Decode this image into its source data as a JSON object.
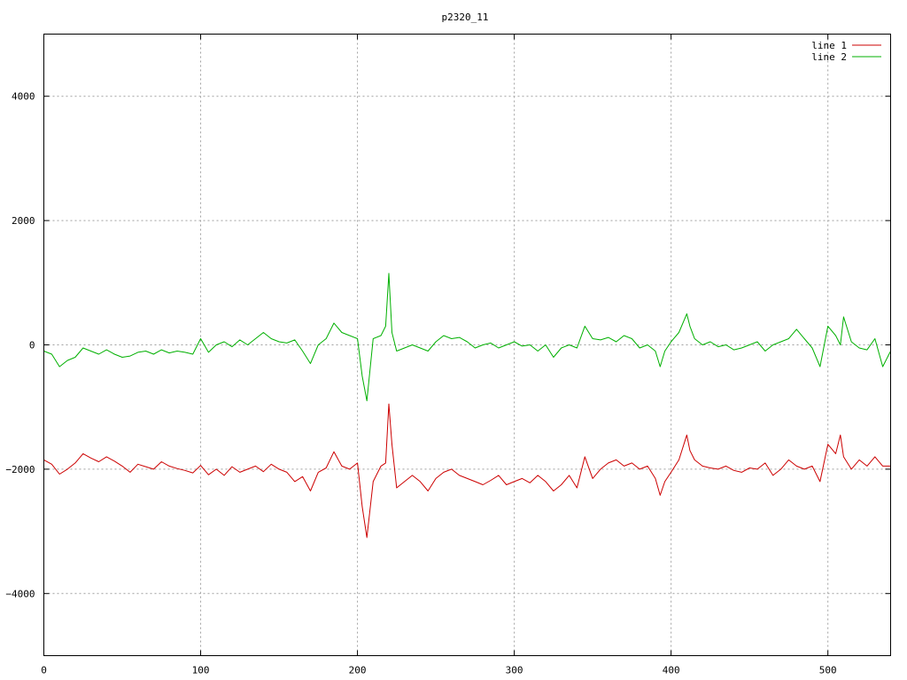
{
  "chart_data": {
    "type": "line",
    "title": "p2320_11",
    "xlabel": "",
    "ylabel": "",
    "xlim": [
      0,
      540
    ],
    "ylim": [
      -5000,
      5000
    ],
    "x_ticks": [
      0,
      100,
      200,
      300,
      400,
      500
    ],
    "y_ticks": [
      -4000,
      -2000,
      0,
      2000,
      4000
    ],
    "grid": true,
    "legend_position": "top-right",
    "colors": {
      "line 1": "#cc0000",
      "line 2": "#00b000"
    },
    "series": [
      {
        "name": "line 1",
        "x": [
          0,
          5,
          10,
          15,
          20,
          25,
          30,
          35,
          40,
          45,
          50,
          55,
          60,
          65,
          70,
          75,
          80,
          85,
          90,
          95,
          100,
          105,
          110,
          115,
          120,
          125,
          130,
          135,
          140,
          145,
          150,
          155,
          160,
          165,
          170,
          175,
          180,
          185,
          190,
          195,
          200,
          203,
          206,
          210,
          215,
          218,
          220,
          222,
          225,
          230,
          235,
          240,
          245,
          250,
          255,
          260,
          265,
          270,
          275,
          280,
          285,
          290,
          295,
          300,
          305,
          310,
          315,
          320,
          325,
          330,
          335,
          340,
          345,
          350,
          355,
          360,
          365,
          370,
          375,
          380,
          385,
          390,
          393,
          396,
          400,
          405,
          410,
          412,
          415,
          420,
          425,
          430,
          435,
          440,
          445,
          450,
          455,
          460,
          465,
          470,
          475,
          480,
          485,
          490,
          495,
          500,
          505,
          508,
          510,
          515,
          520,
          525,
          530,
          535,
          540
        ],
        "values": [
          -1850,
          -1920,
          -2080,
          -2000,
          -1900,
          -1750,
          -1820,
          -1880,
          -1800,
          -1870,
          -1950,
          -2050,
          -1920,
          -1960,
          -2000,
          -1880,
          -1950,
          -1990,
          -2020,
          -2060,
          -1940,
          -2090,
          -2000,
          -2100,
          -1960,
          -2050,
          -2000,
          -1950,
          -2040,
          -1920,
          -2000,
          -2050,
          -2200,
          -2120,
          -2350,
          -2050,
          -1980,
          -1720,
          -1950,
          -2000,
          -1900,
          -2600,
          -3100,
          -2200,
          -1950,
          -1900,
          -950,
          -1600,
          -2300,
          -2200,
          -2100,
          -2200,
          -2350,
          -2150,
          -2050,
          -2000,
          -2100,
          -2150,
          -2200,
          -2250,
          -2180,
          -2100,
          -2250,
          -2200,
          -2150,
          -2220,
          -2100,
          -2200,
          -2350,
          -2250,
          -2100,
          -2300,
          -1800,
          -2150,
          -2000,
          -1900,
          -1850,
          -1950,
          -1900,
          -2000,
          -1950,
          -2150,
          -2420,
          -2200,
          -2050,
          -1850,
          -1450,
          -1700,
          -1850,
          -1950,
          -1980,
          -2000,
          -1950,
          -2020,
          -2050,
          -1980,
          -2000,
          -1900,
          -2100,
          -2000,
          -1850,
          -1950,
          -2000,
          -1950,
          -2200,
          -1600,
          -1750,
          -1450,
          -1800,
          -2000,
          -1850,
          -1950,
          -1800,
          -1950,
          -1950
        ]
      },
      {
        "name": "line 2",
        "x": [
          0,
          5,
          10,
          15,
          20,
          25,
          30,
          35,
          40,
          45,
          50,
          55,
          60,
          65,
          70,
          75,
          80,
          85,
          90,
          95,
          100,
          105,
          110,
          115,
          120,
          125,
          130,
          135,
          140,
          145,
          150,
          155,
          160,
          165,
          170,
          175,
          180,
          185,
          190,
          195,
          200,
          203,
          206,
          210,
          215,
          218,
          220,
          222,
          225,
          230,
          235,
          240,
          245,
          250,
          255,
          260,
          265,
          270,
          275,
          280,
          285,
          290,
          295,
          300,
          305,
          310,
          315,
          320,
          325,
          330,
          335,
          340,
          345,
          350,
          355,
          360,
          365,
          370,
          375,
          380,
          385,
          390,
          393,
          396,
          400,
          405,
          410,
          412,
          415,
          420,
          425,
          430,
          435,
          440,
          445,
          450,
          455,
          460,
          465,
          470,
          475,
          480,
          485,
          490,
          495,
          500,
          505,
          508,
          510,
          515,
          520,
          525,
          530,
          535,
          540
        ],
        "values": [
          -100,
          -150,
          -350,
          -250,
          -200,
          -50,
          -100,
          -150,
          -80,
          -150,
          -200,
          -180,
          -120,
          -100,
          -150,
          -80,
          -130,
          -100,
          -120,
          -150,
          100,
          -120,
          0,
          50,
          -30,
          80,
          0,
          100,
          200,
          100,
          50,
          30,
          80,
          -100,
          -300,
          0,
          100,
          350,
          200,
          150,
          100,
          -500,
          -900,
          100,
          150,
          300,
          1150,
          200,
          -100,
          -50,
          0,
          -50,
          -100,
          50,
          150,
          100,
          120,
          50,
          -50,
          0,
          30,
          -50,
          0,
          50,
          -20,
          0,
          -100,
          0,
          -200,
          -50,
          0,
          -50,
          300,
          100,
          80,
          120,
          50,
          150,
          100,
          -50,
          0,
          -100,
          -350,
          -100,
          50,
          200,
          500,
          300,
          100,
          0,
          50,
          -30,
          0,
          -80,
          -50,
          0,
          50,
          -100,
          0,
          50,
          100,
          250,
          100,
          -50,
          -350,
          300,
          150,
          0,
          450,
          50,
          -50,
          -80,
          100,
          -350,
          -100
        ]
      }
    ]
  }
}
